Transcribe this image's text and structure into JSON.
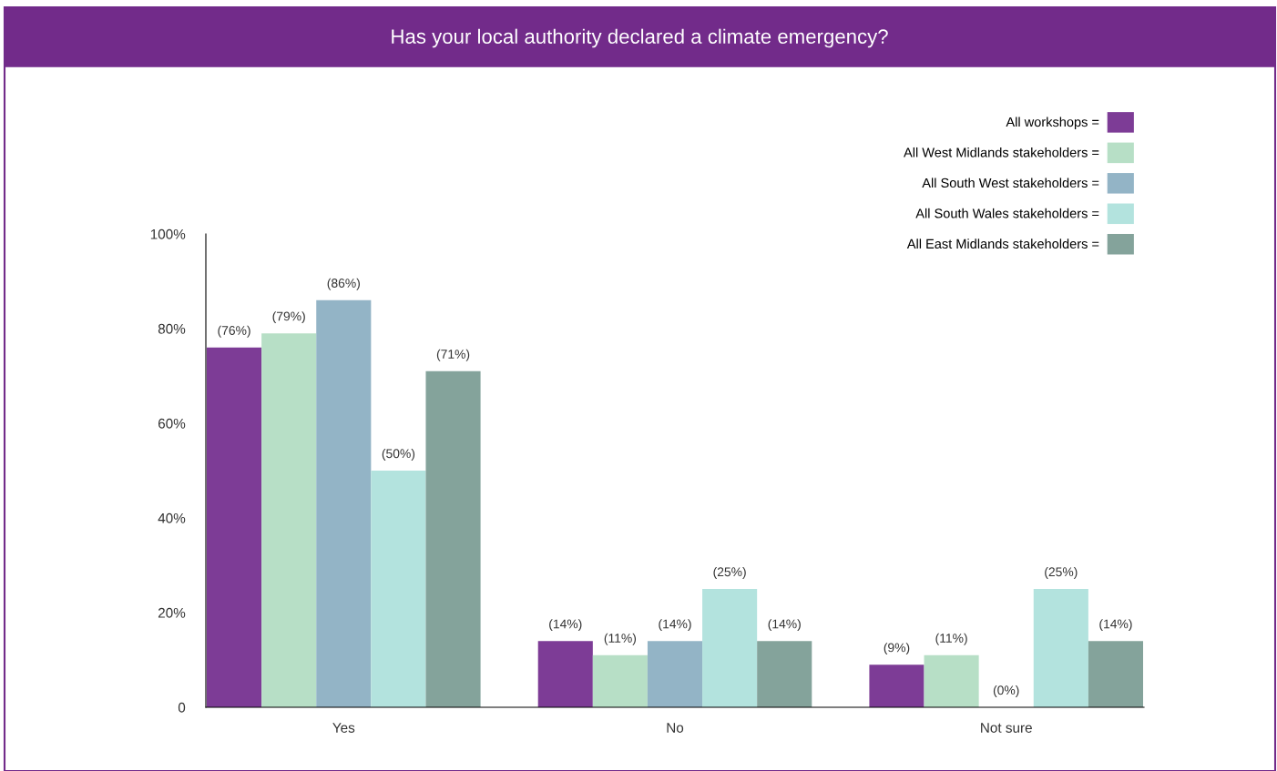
{
  "chart_data": {
    "type": "bar",
    "title": "Has your local authority declared a climate emergency?",
    "categories": [
      "Yes",
      "No",
      "Not sure"
    ],
    "series": [
      {
        "name": "All workshops =",
        "color": "#7d3c96",
        "values": [
          76,
          14,
          9
        ],
        "value_labels": [
          "(76%)",
          "(14%)",
          "(9%)"
        ]
      },
      {
        "name": "All West Midlands stakeholders =",
        "color": "#b7dfc6",
        "values": [
          79,
          11,
          11
        ],
        "value_labels": [
          "(79%)",
          "(11%)",
          "(11%)"
        ]
      },
      {
        "name": "All South West stakeholders =",
        "color": "#93b4c6",
        "values": [
          86,
          14,
          0
        ],
        "value_labels": [
          "(86%)",
          "(14%)",
          "(0%)"
        ]
      },
      {
        "name": "All South Wales stakeholders =",
        "color": "#b3e3de",
        "values": [
          50,
          25,
          25
        ],
        "value_labels": [
          "(50%)",
          "(25%)",
          "(25%)"
        ]
      },
      {
        "name": "All East Midlands stakeholders =",
        "color": "#84a39b",
        "values": [
          71,
          14,
          14
        ],
        "value_labels": [
          "(71%)",
          "(14%)",
          "(14%)"
        ]
      }
    ],
    "ylim": [
      0,
      100
    ],
    "yticks": [
      {
        "value": 0,
        "label": "0"
      },
      {
        "value": 20,
        "label": "20%"
      },
      {
        "value": 40,
        "label": "40%"
      },
      {
        "value": 60,
        "label": "60%"
      },
      {
        "value": 80,
        "label": "80%"
      },
      {
        "value": 100,
        "label": "100%"
      }
    ],
    "grid": false,
    "legend": "top right"
  }
}
